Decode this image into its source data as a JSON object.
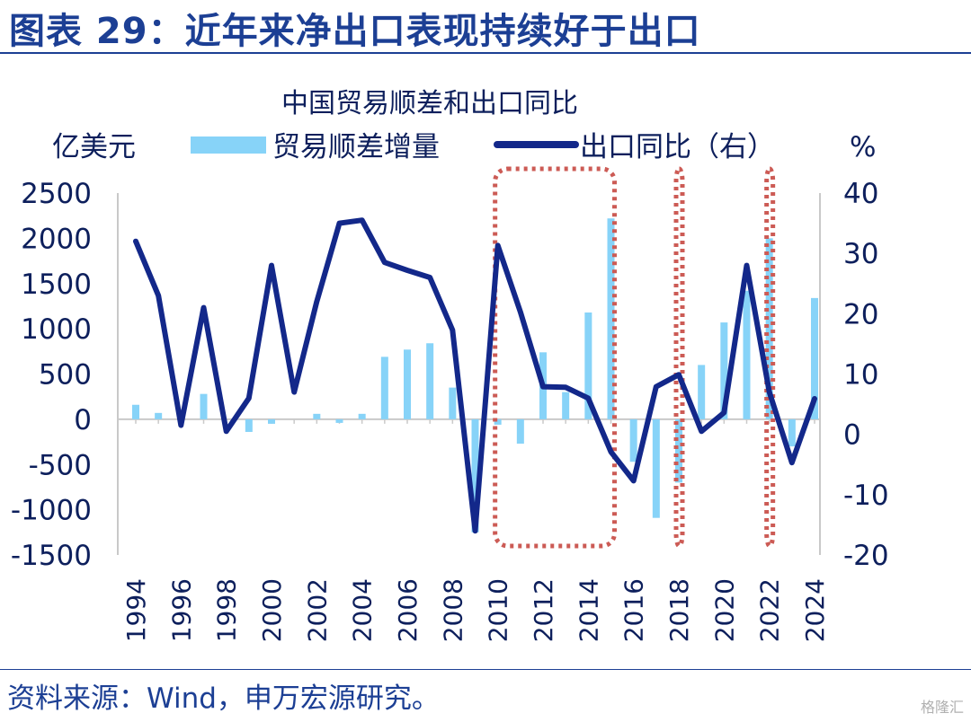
{
  "header": {
    "title": "图表 29：近年来净出口表现持续好于出口"
  },
  "footer": {
    "source": "资料来源：Wind，申万宏源研究。",
    "watermark": "格隆汇"
  },
  "colors": {
    "bar": "#87d3f8",
    "line": "#13288a",
    "box": "#cc5b55",
    "text": "#0d1f5c",
    "title": "#1c3f94"
  },
  "chart_data": {
    "type": "bar+line",
    "title": "中国贸易顺差和出口同比",
    "y_left_label": "亿美元",
    "y_right_label": "%",
    "ylim_left": [
      -1500,
      2500
    ],
    "ylim_right": [
      -20,
      40
    ],
    "yticks_left": [
      2500,
      2000,
      1500,
      1000,
      500,
      0,
      -500,
      -1000,
      -1500
    ],
    "yticks_right": [
      40,
      30,
      20,
      10,
      0,
      -10,
      -20
    ],
    "x": [
      1994,
      1995,
      1996,
      1997,
      1998,
      1999,
      2000,
      2001,
      2002,
      2003,
      2004,
      2005,
      2006,
      2007,
      2008,
      2009,
      2010,
      2011,
      2012,
      2013,
      2014,
      2015,
      2016,
      2017,
      2018,
      2019,
      2020,
      2021,
      2022,
      2023,
      2024
    ],
    "xticks": [
      "1994",
      "1996",
      "1998",
      "2000",
      "2002",
      "2004",
      "2006",
      "2008",
      "2010",
      "2012",
      "2014",
      "2016",
      "2018",
      "2020",
      "2022",
      "2024"
    ],
    "legend": {
      "placement": "top"
    },
    "series": [
      {
        "name": "贸易顺差增量",
        "type": "bar",
        "axis": "left",
        "values": [
          160,
          70,
          0,
          280,
          0,
          -140,
          -50,
          0,
          60,
          -40,
          60,
          690,
          770,
          840,
          350,
          -1250,
          -60,
          -270,
          740,
          300,
          1180,
          2220,
          -470,
          -1090,
          -700,
          600,
          1070,
          1420,
          2000,
          -300,
          1340
        ]
      },
      {
        "name": "出口同比（右）",
        "type": "line",
        "axis": "right",
        "values": [
          32,
          23,
          1.5,
          21,
          0.5,
          6,
          28,
          7,
          22,
          35,
          35.5,
          28.5,
          27.2,
          26,
          17.3,
          -16,
          31.3,
          20.3,
          7.9,
          7.8,
          6,
          -2.9,
          -7.7,
          7.9,
          9.9,
          0.5,
          3.6,
          28,
          7,
          -4.7,
          5.9
        ]
      }
    ],
    "highlight_ranges": [
      [
        2010,
        2015
      ],
      [
        2018,
        2018
      ],
      [
        2022,
        2022
      ]
    ]
  }
}
